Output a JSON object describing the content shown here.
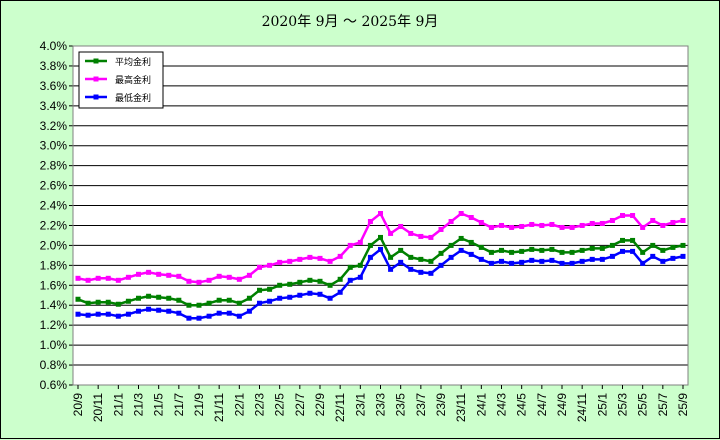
{
  "chart_data": {
    "type": "line",
    "title": "2020年 9月 ～ 2025年 9月",
    "xlabel": "",
    "ylabel": "",
    "ylim": [
      0.6,
      4.0
    ],
    "y_ticks": [
      "0.6%",
      "0.8%",
      "1.0%",
      "1.2%",
      "1.4%",
      "1.6%",
      "1.8%",
      "2.0%",
      "2.2%",
      "2.4%",
      "2.6%",
      "2.8%",
      "3.0%",
      "3.2%",
      "3.4%",
      "3.6%",
      "3.8%",
      "4.0%"
    ],
    "x_tick_labels": [
      "20/9",
      "20/11",
      "21/1",
      "21/3",
      "21/5",
      "21/7",
      "21/9",
      "21/11",
      "22/1",
      "22/3",
      "22/5",
      "22/7",
      "22/9",
      "22/11",
      "23/1",
      "23/3",
      "23/5",
      "23/7",
      "23/9",
      "23/11",
      "24/1",
      "24/3",
      "24/5",
      "24/7",
      "24/9",
      "24/11",
      "25/1",
      "25/3",
      "25/5",
      "25/7",
      "25/9"
    ],
    "grid": true,
    "legend_position": "top-left",
    "series": [
      {
        "name": "平均金利",
        "color": "#008000",
        "values": [
          1.46,
          1.42,
          1.43,
          1.43,
          1.41,
          1.44,
          1.47,
          1.49,
          1.48,
          1.47,
          1.45,
          1.4,
          1.4,
          1.42,
          1.45,
          1.45,
          1.42,
          1.47,
          1.55,
          1.56,
          1.6,
          1.61,
          1.63,
          1.65,
          1.64,
          1.6,
          1.66,
          1.78,
          1.8,
          2.0,
          2.08,
          1.88,
          1.95,
          1.88,
          1.86,
          1.84,
          1.92,
          2.0,
          2.07,
          2.03,
          1.98,
          1.93,
          1.95,
          1.93,
          1.94,
          1.96,
          1.95,
          1.96,
          1.93,
          1.93,
          1.95,
          1.97,
          1.97,
          2.0,
          2.05,
          2.05,
          1.93,
          2.0,
          1.95,
          1.98,
          2.0
        ]
      },
      {
        "name": "最高金利",
        "color": "#ff00ff",
        "values": [
          1.67,
          1.65,
          1.67,
          1.67,
          1.65,
          1.68,
          1.71,
          1.73,
          1.71,
          1.7,
          1.69,
          1.64,
          1.63,
          1.65,
          1.69,
          1.68,
          1.66,
          1.7,
          1.78,
          1.8,
          1.83,
          1.84,
          1.86,
          1.88,
          1.87,
          1.84,
          1.89,
          2.0,
          2.03,
          2.24,
          2.32,
          2.12,
          2.19,
          2.12,
          2.09,
          2.08,
          2.16,
          2.24,
          2.32,
          2.28,
          2.23,
          2.18,
          2.2,
          2.18,
          2.19,
          2.21,
          2.2,
          2.21,
          2.18,
          2.18,
          2.2,
          2.22,
          2.22,
          2.25,
          2.3,
          2.3,
          2.18,
          2.25,
          2.2,
          2.23,
          2.25
        ]
      },
      {
        "name": "最低金利",
        "color": "#0000ff",
        "values": [
          1.31,
          1.3,
          1.31,
          1.31,
          1.29,
          1.31,
          1.34,
          1.36,
          1.35,
          1.34,
          1.32,
          1.27,
          1.27,
          1.29,
          1.32,
          1.32,
          1.29,
          1.34,
          1.42,
          1.44,
          1.47,
          1.48,
          1.5,
          1.52,
          1.51,
          1.47,
          1.53,
          1.65,
          1.68,
          1.88,
          1.96,
          1.76,
          1.83,
          1.76,
          1.73,
          1.72,
          1.8,
          1.88,
          1.95,
          1.91,
          1.86,
          1.82,
          1.84,
          1.82,
          1.83,
          1.85,
          1.84,
          1.85,
          1.82,
          1.82,
          1.84,
          1.86,
          1.86,
          1.89,
          1.94,
          1.94,
          1.82,
          1.89,
          1.84,
          1.87,
          1.89
        ]
      }
    ]
  }
}
